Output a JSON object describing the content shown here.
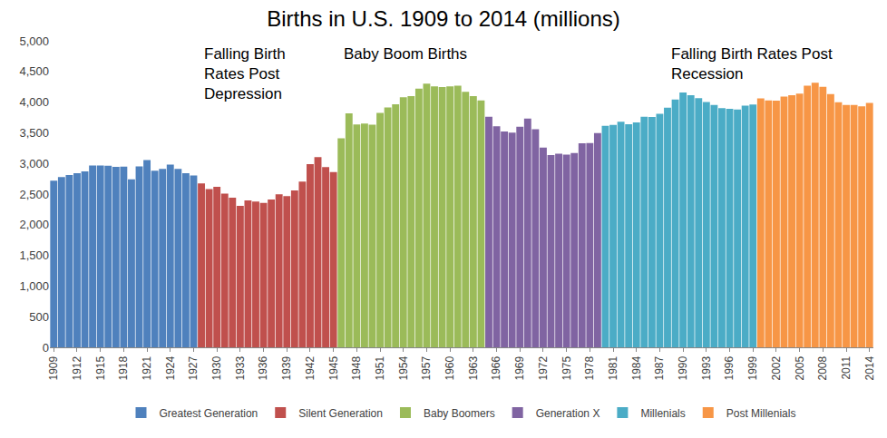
{
  "chart_data": {
    "type": "bar",
    "title": "Births in U.S. 1909 to 2014 (millions)",
    "annotations": [
      "Falling Birth\nRates Post\nDepression",
      "Baby Boom Births",
      "Falling Birth Rates Post\nRecession"
    ],
    "series": [
      {
        "name": "Greatest Generation",
        "color": "#4f81bd",
        "x": [
          1909,
          1910,
          1911,
          1912,
          1913,
          1914,
          1915,
          1916,
          1917,
          1918,
          1919,
          1920,
          1921,
          1922,
          1923,
          1924,
          1925,
          1926,
          1927
        ],
        "values": [
          2718,
          2777,
          2809,
          2840,
          2869,
          2966,
          2965,
          2964,
          2944,
          2948,
          2740,
          2950,
          3055,
          2882,
          2910,
          2979,
          2909,
          2839,
          2802
        ]
      },
      {
        "name": "Silent Generation",
        "color": "#c0504d",
        "x": [
          1928,
          1929,
          1930,
          1931,
          1932,
          1933,
          1934,
          1935,
          1936,
          1937,
          1938,
          1939,
          1940,
          1941,
          1942,
          1943,
          1944,
          1945
        ],
        "values": [
          2674,
          2582,
          2618,
          2506,
          2440,
          2307,
          2396,
          2377,
          2355,
          2413,
          2496,
          2466,
          2559,
          2703,
          2989,
          3104,
          2939,
          2858
        ]
      },
      {
        "name": "Baby Boomers",
        "color": "#9bbb59",
        "x": [
          1946,
          1947,
          1948,
          1949,
          1950,
          1951,
          1952,
          1953,
          1954,
          1955,
          1956,
          1957,
          1958,
          1959,
          1960,
          1961,
          1962,
          1963,
          1964
        ],
        "values": [
          3411,
          3817,
          3637,
          3649,
          3632,
          3823,
          3913,
          3965,
          4078,
          4097,
          4218,
          4300,
          4255,
          4245,
          4258,
          4268,
          4167,
          4098,
          4027
        ]
      },
      {
        "name": "Generation X",
        "color": "#8064a2",
        "x": [
          1965,
          1966,
          1967,
          1968,
          1969,
          1970,
          1971,
          1972,
          1973,
          1974,
          1975,
          1976,
          1977,
          1978,
          1979
        ],
        "values": [
          3760,
          3606,
          3521,
          3502,
          3600,
          3731,
          3556,
          3258,
          3137,
          3160,
          3144,
          3168,
          3327,
          3333,
          3494
        ]
      },
      {
        "name": "Millenials",
        "color": "#4bacc6",
        "x": [
          1980,
          1981,
          1982,
          1983,
          1984,
          1985,
          1986,
          1987,
          1988,
          1989,
          1990,
          1991,
          1992,
          1993,
          1994,
          1995,
          1996,
          1997,
          1998,
          1999
        ],
        "values": [
          3612,
          3629,
          3681,
          3639,
          3669,
          3761,
          3757,
          3809,
          3910,
          4041,
          4158,
          4111,
          4065,
          4000,
          3953,
          3900,
          3891,
          3881,
          3942,
          3959
        ]
      },
      {
        "name": "Post Millenials",
        "color": "#f79646",
        "x": [
          2000,
          2001,
          2002,
          2003,
          2004,
          2005,
          2006,
          2007,
          2008,
          2009,
          2010,
          2011,
          2012,
          2013,
          2014
        ],
        "values": [
          4059,
          4026,
          4022,
          4090,
          4112,
          4138,
          4266,
          4316,
          4248,
          4131,
          3999,
          3954,
          3953,
          3932,
          3988
        ]
      }
    ],
    "xlim": [
      1908.5,
      2014.5
    ],
    "xticks": [
      1909,
      1912,
      1915,
      1918,
      1921,
      1924,
      1927,
      1930,
      1933,
      1936,
      1939,
      1942,
      1945,
      1948,
      1951,
      1954,
      1957,
      1960,
      1963,
      1966,
      1969,
      1972,
      1975,
      1978,
      1981,
      1984,
      1987,
      1990,
      1993,
      1996,
      1999,
      2002,
      2005,
      2008,
      2011,
      2014
    ],
    "ylim": [
      0,
      5000
    ],
    "yticks": [
      0,
      500,
      {
        "value": 1000,
        "label": "1,000"
      },
      {
        "value": 1500,
        "label": "1,500"
      },
      {
        "value": 2000,
        "label": "2,000"
      },
      {
        "value": 2500,
        "label": "2,500"
      },
      {
        "value": 3000,
        "label": "3,000"
      },
      {
        "value": 3500,
        "label": "3,500"
      },
      {
        "value": 4000,
        "label": "4,000"
      },
      {
        "value": 4500,
        "label": "4,500"
      },
      {
        "value": 5000,
        "label": "5,000"
      }
    ],
    "grid": false,
    "legend": "bottom"
  }
}
